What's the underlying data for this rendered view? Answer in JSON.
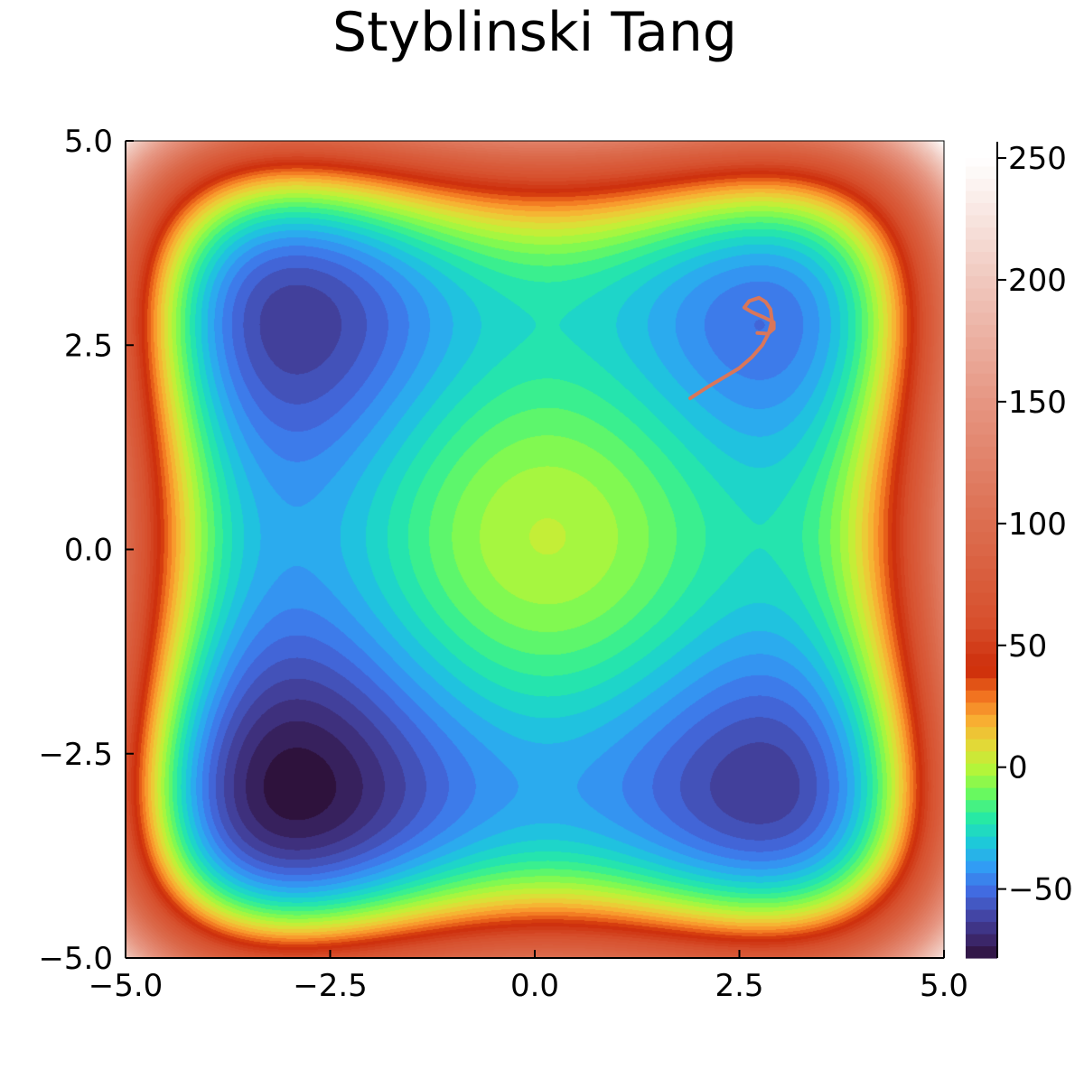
{
  "chart_data": {
    "type": "contour",
    "title": "Styblinski Tang",
    "function": "f(x,y) = ((x^4 - 16x^2 + 5x) + (y^4 - 16y^2 + 5y)) / 2",
    "xlim": [
      -5.0,
      5.0
    ],
    "ylim": [
      -5.0,
      5.0
    ],
    "x_ticks": [
      "−5.0",
      "−2.5",
      "0.0",
      "2.5",
      "5.0"
    ],
    "x_tick_values": [
      -5.0,
      -2.5,
      0.0,
      2.5,
      5.0
    ],
    "y_ticks": [
      "−5.0",
      "−2.5",
      "0.0",
      "2.5",
      "5.0"
    ],
    "y_tick_values": [
      -5.0,
      -2.5,
      0.0,
      2.5,
      5.0
    ],
    "colorbar": {
      "colormap": "turbo-to-white",
      "range": [
        -78.3,
        250
      ],
      "ticks": [
        "250",
        "200",
        "150",
        "100",
        "50",
        "0",
        "−50"
      ],
      "tick_values": [
        250,
        200,
        150,
        100,
        50,
        0,
        -50
      ]
    },
    "grid": false,
    "series": [
      {
        "type": "line",
        "color": "#d9765a",
        "x": [
          1.9,
          2.1,
          2.3,
          2.5,
          2.65,
          2.78,
          2.86,
          2.9,
          2.88,
          2.82,
          2.74,
          2.62,
          2.56,
          2.66,
          2.8,
          2.92,
          2.92,
          2.85,
          2.72
        ],
        "y": [
          1.85,
          1.98,
          2.1,
          2.22,
          2.35,
          2.5,
          2.65,
          2.8,
          2.94,
          3.03,
          3.08,
          3.04,
          2.96,
          2.9,
          2.84,
          2.78,
          2.7,
          2.64,
          2.65
        ]
      }
    ]
  }
}
